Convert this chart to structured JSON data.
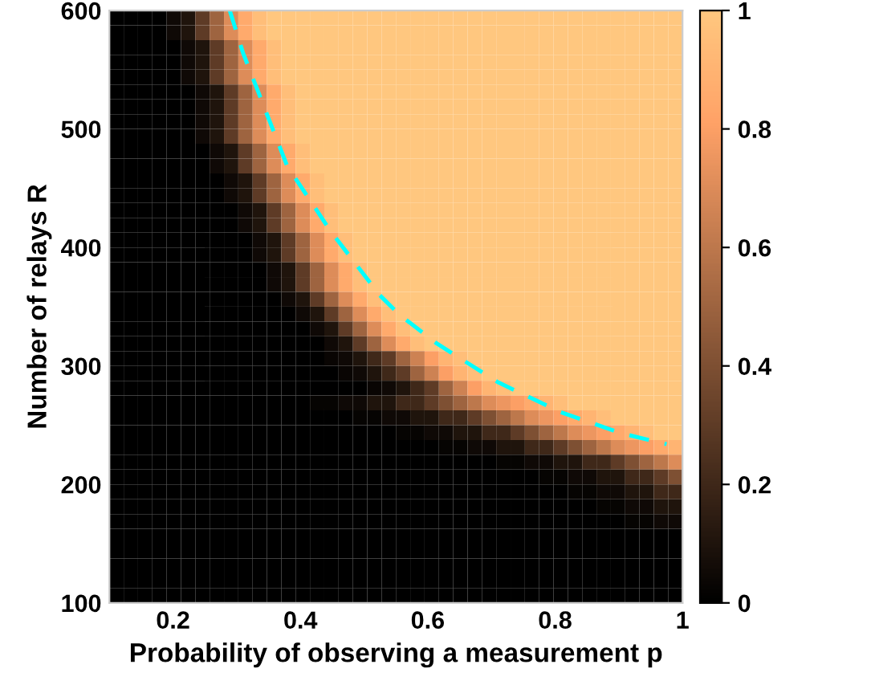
{
  "chart_data": {
    "type": "heatmap",
    "xlabel": "Probability of observing a measurement p",
    "ylabel": "Number of relays R",
    "xlim": [
      0.1,
      1
    ],
    "ylim": [
      100,
      600
    ],
    "xticks": [
      0.2,
      0.4,
      0.6,
      0.8,
      1
    ],
    "yticks": [
      100,
      200,
      300,
      400,
      500,
      600
    ],
    "clim": [
      0,
      1
    ],
    "cticks": [
      0,
      0.2,
      0.4,
      0.6,
      0.8,
      1
    ],
    "grid": false,
    "legend": false,
    "cells": [
      [
        0,
        0,
        0,
        0,
        0.05,
        0.1,
        0.3,
        0.5,
        0.7,
        0.85,
        0.95,
        1,
        1,
        1,
        1,
        1,
        1,
        1,
        1,
        1,
        1,
        1,
        1,
        1,
        1,
        1,
        1,
        1,
        1,
        1,
        1,
        1,
        1,
        1,
        1,
        1,
        1,
        1,
        1,
        1
      ],
      [
        0,
        0,
        0,
        0,
        0.05,
        0.1,
        0.3,
        0.5,
        0.7,
        0.85,
        0.95,
        1,
        1,
        1,
        1,
        1,
        1,
        1,
        1,
        1,
        1,
        1,
        1,
        1,
        1,
        1,
        1,
        1,
        1,
        1,
        1,
        1,
        1,
        1,
        1,
        1,
        1,
        1,
        1,
        1
      ],
      [
        0,
        0,
        0,
        0,
        0,
        0.05,
        0.1,
        0.3,
        0.5,
        0.7,
        0.85,
        0.95,
        1,
        1,
        1,
        1,
        1,
        1,
        1,
        1,
        1,
        1,
        1,
        1,
        1,
        1,
        1,
        1,
        1,
        1,
        1,
        1,
        1,
        1,
        1,
        1,
        1,
        1,
        1,
        1
      ],
      [
        0,
        0,
        0,
        0,
        0,
        0.05,
        0.1,
        0.3,
        0.5,
        0.7,
        0.85,
        0.95,
        1,
        1,
        1,
        1,
        1,
        1,
        1,
        1,
        1,
        1,
        1,
        1,
        1,
        1,
        1,
        1,
        1,
        1,
        1,
        1,
        1,
        1,
        1,
        1,
        1,
        1,
        1,
        1
      ],
      [
        0,
        0,
        0,
        0,
        0,
        0.05,
        0.1,
        0.3,
        0.5,
        0.7,
        0.85,
        0.95,
        1,
        1,
        1,
        1,
        1,
        1,
        1,
        1,
        1,
        1,
        1,
        1,
        1,
        1,
        1,
        1,
        1,
        1,
        1,
        1,
        1,
        1,
        1,
        1,
        1,
        1,
        1,
        1
      ],
      [
        0,
        0,
        0,
        0,
        0,
        0,
        0.05,
        0.1,
        0.3,
        0.5,
        0.7,
        0.85,
        0.95,
        1,
        1,
        1,
        1,
        1,
        1,
        1,
        1,
        1,
        1,
        1,
        1,
        1,
        1,
        1,
        1,
        1,
        1,
        1,
        1,
        1,
        1,
        1,
        1,
        1,
        1,
        1
      ],
      [
        0,
        0,
        0,
        0,
        0,
        0,
        0.05,
        0.1,
        0.3,
        0.5,
        0.7,
        0.85,
        0.95,
        1,
        1,
        1,
        1,
        1,
        1,
        1,
        1,
        1,
        1,
        1,
        1,
        1,
        1,
        1,
        1,
        1,
        1,
        1,
        1,
        1,
        1,
        1,
        1,
        1,
        1,
        1
      ],
      [
        0,
        0,
        0,
        0,
        0,
        0,
        0.05,
        0.1,
        0.3,
        0.5,
        0.7,
        0.85,
        0.95,
        1,
        1,
        1,
        1,
        1,
        1,
        1,
        1,
        1,
        1,
        1,
        1,
        1,
        1,
        1,
        1,
        1,
        1,
        1,
        1,
        1,
        1,
        1,
        1,
        1,
        1,
        1
      ],
      [
        0,
        0,
        0,
        0,
        0,
        0,
        0.05,
        0.1,
        0.3,
        0.5,
        0.7,
        0.85,
        0.95,
        1,
        1,
        1,
        1,
        1,
        1,
        1,
        1,
        1,
        1,
        1,
        1,
        1,
        1,
        1,
        1,
        1,
        1,
        1,
        1,
        1,
        1,
        1,
        1,
        1,
        1,
        1
      ],
      [
        0,
        0,
        0,
        0,
        0,
        0,
        0,
        0.05,
        0.1,
        0.3,
        0.5,
        0.7,
        0.85,
        0.95,
        1,
        1,
        1,
        1,
        1,
        1,
        1,
        1,
        1,
        1,
        1,
        1,
        1,
        1,
        1,
        1,
        1,
        1,
        1,
        1,
        1,
        1,
        1,
        1,
        1,
        1
      ],
      [
        0,
        0,
        0,
        0,
        0,
        0,
        0,
        0.05,
        0.1,
        0.3,
        0.5,
        0.7,
        0.85,
        0.95,
        1,
        1,
        1,
        1,
        1,
        1,
        1,
        1,
        1,
        1,
        1,
        1,
        1,
        1,
        1,
        1,
        1,
        1,
        1,
        1,
        1,
        1,
        1,
        1,
        1,
        1
      ],
      [
        0,
        0,
        0,
        0,
        0,
        0,
        0,
        0,
        0.05,
        0.1,
        0.3,
        0.5,
        0.7,
        0.85,
        0.95,
        1,
        1,
        1,
        1,
        1,
        1,
        1,
        1,
        1,
        1,
        1,
        1,
        1,
        1,
        1,
        1,
        1,
        1,
        1,
        1,
        1,
        1,
        1,
        1,
        1
      ],
      [
        0,
        0,
        0,
        0,
        0,
        0,
        0,
        0,
        0.05,
        0.1,
        0.3,
        0.5,
        0.7,
        0.85,
        0.95,
        1,
        1,
        1,
        1,
        1,
        1,
        1,
        1,
        1,
        1,
        1,
        1,
        1,
        1,
        1,
        1,
        1,
        1,
        1,
        1,
        1,
        1,
        1,
        1,
        1
      ],
      [
        0,
        0,
        0,
        0,
        0,
        0,
        0,
        0,
        0,
        0.05,
        0.1,
        0.3,
        0.5,
        0.7,
        0.85,
        0.95,
        1,
        1,
        1,
        1,
        1,
        1,
        1,
        1,
        1,
        1,
        1,
        1,
        1,
        1,
        1,
        1,
        1,
        1,
        1,
        1,
        1,
        1,
        1,
        1
      ],
      [
        0,
        0,
        0,
        0,
        0,
        0,
        0,
        0,
        0,
        0.05,
        0.1,
        0.3,
        0.5,
        0.7,
        0.85,
        0.95,
        1,
        1,
        1,
        1,
        1,
        1,
        1,
        1,
        1,
        1,
        1,
        1,
        1,
        1,
        1,
        1,
        1,
        1,
        1,
        1,
        1,
        1,
        1,
        1
      ],
      [
        0,
        0,
        0,
        0,
        0,
        0,
        0,
        0,
        0,
        0,
        0.05,
        0.1,
        0.3,
        0.5,
        0.7,
        0.85,
        0.95,
        1,
        1,
        1,
        1,
        1,
        1,
        1,
        1,
        1,
        1,
        1,
        1,
        1,
        1,
        1,
        1,
        1,
        1,
        1,
        1,
        1,
        1,
        1
      ],
      [
        0,
        0,
        0,
        0,
        0,
        0,
        0,
        0,
        0,
        0,
        0.05,
        0.1,
        0.3,
        0.5,
        0.7,
        0.85,
        0.95,
        1,
        1,
        1,
        1,
        1,
        1,
        1,
        1,
        1,
        1,
        1,
        1,
        1,
        1,
        1,
        1,
        1,
        1,
        1,
        1,
        1,
        1,
        1
      ],
      [
        0,
        0,
        0,
        0,
        0,
        0,
        0,
        0,
        0,
        0,
        0,
        0.05,
        0.1,
        0.3,
        0.5,
        0.7,
        0.85,
        0.95,
        1,
        1,
        1,
        1,
        1,
        1,
        1,
        1,
        1,
        1,
        1,
        1,
        1,
        1,
        1,
        1,
        1,
        1,
        1,
        1,
        1,
        1
      ],
      [
        0,
        0,
        0,
        0,
        0,
        0,
        0,
        0,
        0,
        0,
        0,
        0.05,
        0.1,
        0.3,
        0.5,
        0.7,
        0.85,
        0.95,
        1,
        1,
        1,
        1,
        1,
        1,
        1,
        1,
        1,
        1,
        1,
        1,
        1,
        1,
        1,
        1,
        1,
        1,
        1,
        1,
        1,
        1
      ],
      [
        0,
        0,
        0,
        0,
        0,
        0,
        0,
        0,
        0,
        0,
        0,
        0,
        0.05,
        0.1,
        0.3,
        0.5,
        0.7,
        0.85,
        0.95,
        1,
        1,
        1,
        1,
        1,
        1,
        1,
        1,
        1,
        1,
        1,
        1,
        1,
        1,
        1,
        1,
        1,
        1,
        1,
        1,
        1
      ],
      [
        0,
        0,
        0,
        0,
        0,
        0,
        0,
        0,
        0,
        0,
        0,
        0,
        0,
        0.05,
        0.1,
        0.3,
        0.5,
        0.7,
        0.85,
        0.95,
        1,
        1,
        1,
        1,
        1,
        1,
        1,
        1,
        1,
        1,
        1,
        1,
        1,
        1,
        1,
        1,
        1,
        1,
        1,
        1
      ],
      [
        0,
        0,
        0,
        0,
        0,
        0,
        0,
        0,
        0,
        0,
        0,
        0,
        0,
        0,
        0.05,
        0.1,
        0.3,
        0.5,
        0.7,
        0.85,
        0.95,
        1,
        1,
        1,
        1,
        1,
        1,
        1,
        1,
        1,
        1,
        1,
        1,
        1,
        1,
        1,
        1,
        1,
        1,
        1
      ],
      [
        0,
        0,
        0,
        0,
        0,
        0,
        0,
        0,
        0,
        0,
        0,
        0,
        0,
        0,
        0,
        0.05,
        0.1,
        0.3,
        0.5,
        0.7,
        0.85,
        0.95,
        1,
        1,
        1,
        1,
        1,
        1,
        1,
        1,
        1,
        1,
        1,
        1,
        1,
        1,
        1,
        1,
        1,
        1
      ],
      [
        0,
        0,
        0,
        0,
        0,
        0,
        0,
        0,
        0,
        0,
        0,
        0,
        0,
        0,
        0,
        0.03,
        0.05,
        0.1,
        0.2,
        0.3,
        0.5,
        0.65,
        0.8,
        0.9,
        0.95,
        1,
        1,
        1,
        1,
        1,
        1,
        1,
        1,
        1,
        1,
        1,
        1,
        1,
        1,
        1
      ],
      [
        0,
        0,
        0,
        0,
        0,
        0,
        0,
        0,
        0,
        0,
        0,
        0,
        0,
        0,
        0,
        0,
        0.03,
        0.05,
        0.1,
        0.2,
        0.3,
        0.5,
        0.65,
        0.8,
        0.9,
        0.95,
        1,
        1,
        1,
        1,
        1,
        1,
        1,
        1,
        1,
        1,
        1,
        1,
        1,
        1
      ],
      [
        0,
        0,
        0,
        0,
        0,
        0,
        0,
        0,
        0,
        0,
        0,
        0,
        0,
        0,
        0,
        0,
        0,
        0,
        0.03,
        0.05,
        0.1,
        0.2,
        0.3,
        0.5,
        0.65,
        0.8,
        0.9,
        0.95,
        1,
        1,
        1,
        1,
        1,
        1,
        1,
        1,
        1,
        1,
        1,
        1
      ],
      [
        0,
        0,
        0,
        0,
        0,
        0,
        0,
        0,
        0,
        0,
        0,
        0,
        0,
        0,
        0.02,
        0.02,
        0.05,
        0.05,
        0.1,
        0.1,
        0.2,
        0.2,
        0.3,
        0.4,
        0.5,
        0.6,
        0.7,
        0.75,
        0.8,
        0.85,
        0.9,
        0.95,
        1,
        1,
        1,
        1,
        1,
        1,
        1,
        1
      ],
      [
        0,
        0,
        0,
        0,
        0,
        0,
        0,
        0,
        0,
        0,
        0,
        0,
        0,
        0,
        0,
        0,
        0,
        0.02,
        0.02,
        0.05,
        0.05,
        0.1,
        0.1,
        0.2,
        0.2,
        0.3,
        0.4,
        0.5,
        0.6,
        0.7,
        0.75,
        0.8,
        0.85,
        0.9,
        0.95,
        1,
        1,
        1,
        1,
        1
      ],
      [
        0,
        0,
        0,
        0,
        0,
        0,
        0,
        0,
        0,
        0,
        0,
        0,
        0,
        0,
        0,
        0,
        0,
        0,
        0,
        0,
        0.02,
        0.02,
        0.05,
        0.05,
        0.1,
        0.1,
        0.2,
        0.2,
        0.3,
        0.4,
        0.5,
        0.6,
        0.7,
        0.75,
        0.8,
        0.85,
        0.9,
        0.95,
        1,
        1
      ],
      [
        0,
        0,
        0,
        0,
        0,
        0,
        0,
        0,
        0,
        0,
        0,
        0,
        0,
        0,
        0,
        0,
        0,
        0,
        0,
        0,
        0,
        0,
        0,
        0.02,
        0.02,
        0.05,
        0.05,
        0.1,
        0.1,
        0.2,
        0.2,
        0.3,
        0.4,
        0.5,
        0.6,
        0.7,
        0.75,
        0.8,
        0.85,
        0.9
      ],
      [
        0,
        0,
        0,
        0,
        0,
        0,
        0,
        0,
        0,
        0,
        0,
        0,
        0,
        0,
        0,
        0,
        0,
        0,
        0,
        0,
        0,
        0,
        0,
        0,
        0,
        0,
        0,
        0.02,
        0.02,
        0.05,
        0.05,
        0.1,
        0.1,
        0.2,
        0.2,
        0.3,
        0.4,
        0.5,
        0.6,
        0.7
      ],
      [
        0,
        0,
        0,
        0,
        0,
        0,
        0,
        0,
        0,
        0,
        0,
        0,
        0,
        0,
        0,
        0,
        0,
        0,
        0,
        0,
        0,
        0,
        0,
        0,
        0,
        0,
        0,
        0,
        0,
        0,
        0.02,
        0.02,
        0.05,
        0.05,
        0.1,
        0.1,
        0.2,
        0.2,
        0.3,
        0.4
      ],
      [
        0,
        0,
        0,
        0,
        0,
        0,
        0,
        0,
        0,
        0,
        0,
        0,
        0,
        0,
        0,
        0,
        0,
        0,
        0,
        0,
        0,
        0,
        0,
        0,
        0,
        0,
        0,
        0,
        0,
        0,
        0,
        0,
        0.02,
        0.02,
        0.05,
        0.05,
        0.1,
        0.1,
        0.2,
        0.2
      ],
      [
        0,
        0,
        0,
        0,
        0,
        0,
        0,
        0,
        0,
        0,
        0,
        0,
        0,
        0,
        0,
        0,
        0,
        0,
        0,
        0,
        0,
        0,
        0,
        0,
        0,
        0,
        0,
        0,
        0,
        0,
        0,
        0,
        0,
        0,
        0.02,
        0.02,
        0.05,
        0.05,
        0.1,
        0.1
      ],
      [
        0,
        0,
        0,
        0,
        0,
        0,
        0,
        0,
        0,
        0,
        0,
        0,
        0,
        0,
        0,
        0,
        0,
        0,
        0,
        0,
        0,
        0,
        0,
        0,
        0,
        0,
        0,
        0,
        0,
        0,
        0,
        0,
        0,
        0,
        0,
        0,
        0.02,
        0.02,
        0.05,
        0.05
      ],
      [
        0,
        0,
        0,
        0,
        0,
        0,
        0,
        0,
        0,
        0,
        0,
        0,
        0,
        0,
        0,
        0,
        0,
        0,
        0,
        0,
        0,
        0,
        0,
        0,
        0,
        0,
        0,
        0,
        0,
        0,
        0,
        0,
        0,
        0,
        0,
        0,
        0,
        0,
        0,
        0
      ],
      [
        0,
        0,
        0,
        0,
        0,
        0,
        0,
        0,
        0,
        0,
        0,
        0,
        0,
        0,
        0,
        0,
        0,
        0,
        0,
        0,
        0,
        0,
        0,
        0,
        0,
        0,
        0,
        0,
        0,
        0,
        0,
        0,
        0,
        0,
        0,
        0,
        0,
        0,
        0,
        0
      ],
      [
        0,
        0,
        0,
        0,
        0,
        0,
        0,
        0,
        0,
        0,
        0,
        0,
        0,
        0,
        0,
        0,
        0,
        0,
        0,
        0,
        0,
        0,
        0,
        0,
        0,
        0,
        0,
        0,
        0,
        0,
        0,
        0,
        0,
        0,
        0,
        0,
        0,
        0,
        0,
        0
      ],
      [
        0,
        0,
        0,
        0,
        0,
        0,
        0,
        0,
        0,
        0,
        0,
        0,
        0,
        0,
        0,
        0,
        0,
        0,
        0,
        0,
        0,
        0,
        0,
        0,
        0,
        0,
        0,
        0,
        0,
        0,
        0,
        0,
        0,
        0,
        0,
        0,
        0,
        0,
        0,
        0
      ],
      [
        0,
        0,
        0,
        0,
        0,
        0,
        0,
        0,
        0,
        0,
        0,
        0,
        0,
        0,
        0,
        0,
        0,
        0,
        0,
        0,
        0,
        0,
        0,
        0,
        0,
        0,
        0,
        0,
        0,
        0,
        0,
        0,
        0,
        0,
        0,
        0,
        0,
        0,
        0,
        0
      ]
    ],
    "series": [
      {
        "type": "line",
        "color": "#00ffff",
        "line_style": "dashed",
        "marker": "none",
        "x": [
          0.289,
          0.31,
          0.379,
          0.447,
          0.524,
          0.556,
          0.614,
          0.711,
          0.809,
          0.905,
          0.975
        ],
        "values": [
          600,
          564,
          469,
          414,
          360,
          343,
          319,
          286,
          261,
          243,
          234
        ]
      }
    ]
  }
}
